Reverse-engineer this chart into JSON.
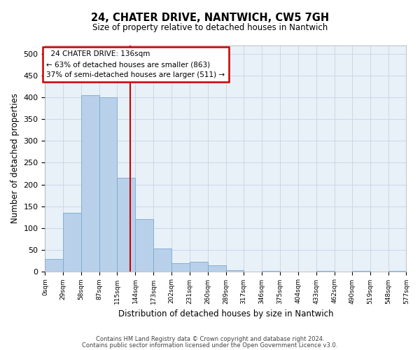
{
  "title": "24, CHATER DRIVE, NANTWICH, CW5 7GH",
  "subtitle": "Size of property relative to detached houses in Nantwich",
  "xlabel": "Distribution of detached houses by size in Nantwich",
  "ylabel": "Number of detached properties",
  "footer_line1": "Contains HM Land Registry data © Crown copyright and database right 2024.",
  "footer_line2": "Contains public sector information licensed under the Open Government Licence v3.0.",
  "property_size": 136,
  "annotation_title": "24 CHATER DRIVE: 136sqm",
  "annotation_line2": "← 63% of detached houses are smaller (863)",
  "annotation_line3": "37% of semi-detached houses are larger (511) →",
  "bin_edges": [
    0,
    29,
    58,
    87,
    115,
    144,
    173,
    202,
    231,
    260,
    289,
    317,
    346,
    375,
    404,
    433,
    462,
    490,
    519,
    548,
    577
  ],
  "bin_labels": [
    "0sqm",
    "29sqm",
    "58sqm",
    "87sqm",
    "115sqm",
    "144sqm",
    "173sqm",
    "202sqm",
    "231sqm",
    "260sqm",
    "289sqm",
    "317sqm",
    "346sqm",
    "375sqm",
    "404sqm",
    "433sqm",
    "462sqm",
    "490sqm",
    "519sqm",
    "548sqm",
    "577sqm"
  ],
  "bar_heights": [
    28,
    135,
    405,
    400,
    215,
    120,
    52,
    18,
    22,
    14,
    2,
    0,
    1,
    0,
    0,
    1,
    0,
    1,
    0,
    1
  ],
  "bar_color": "#b8d0ea",
  "bar_edge_color": "#7aaad0",
  "bg_color": "#e8f0f8",
  "grid_color": "#c8d4e4",
  "annotation_box_edge": "#cc0000",
  "vline_color": "#cc0000",
  "ylim": [
    0,
    520
  ],
  "yticks": [
    0,
    50,
    100,
    150,
    200,
    250,
    300,
    350,
    400,
    450,
    500
  ]
}
